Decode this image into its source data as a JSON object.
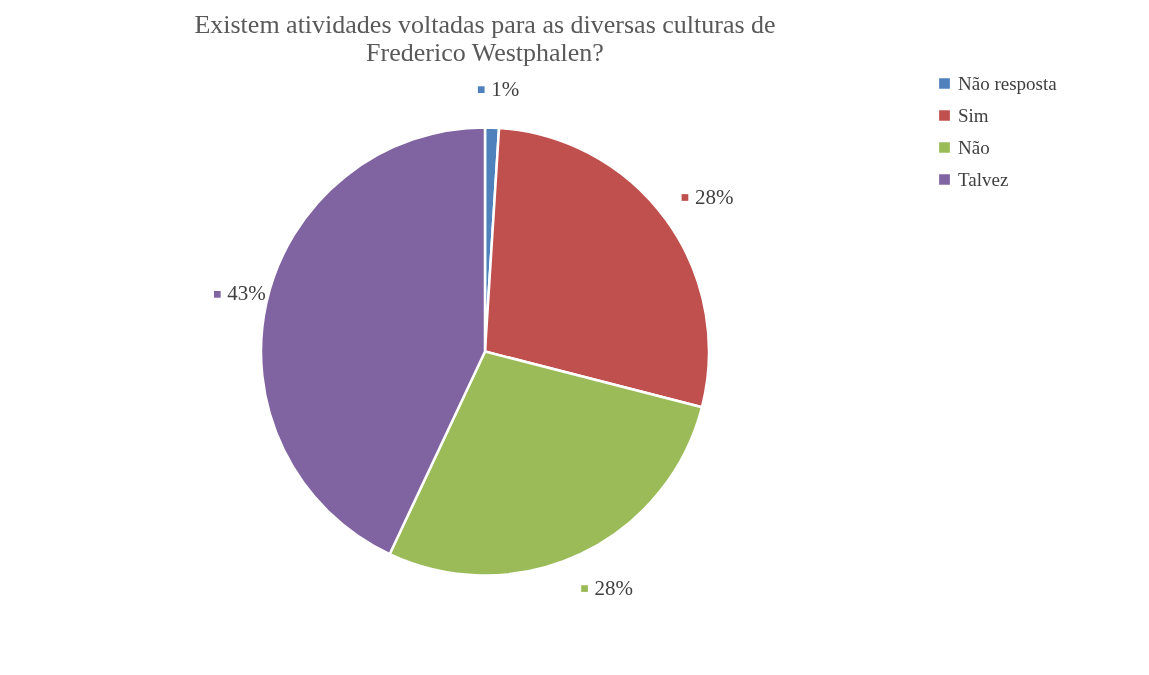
{
  "chart_data": {
    "type": "pie",
    "title": "Existem atividades voltadas para as diversas culturas de Frederico Westphalen?",
    "categories": [
      "Não resposta",
      "Sim",
      "Não",
      "Talvez"
    ],
    "values": [
      1,
      28,
      28,
      43
    ],
    "colors": [
      "#4f81bd",
      "#c0504d",
      "#9bbb59",
      "#8064a2"
    ],
    "value_labels": [
      "1%",
      "28%",
      "28%",
      "43%"
    ],
    "legend": "right"
  }
}
